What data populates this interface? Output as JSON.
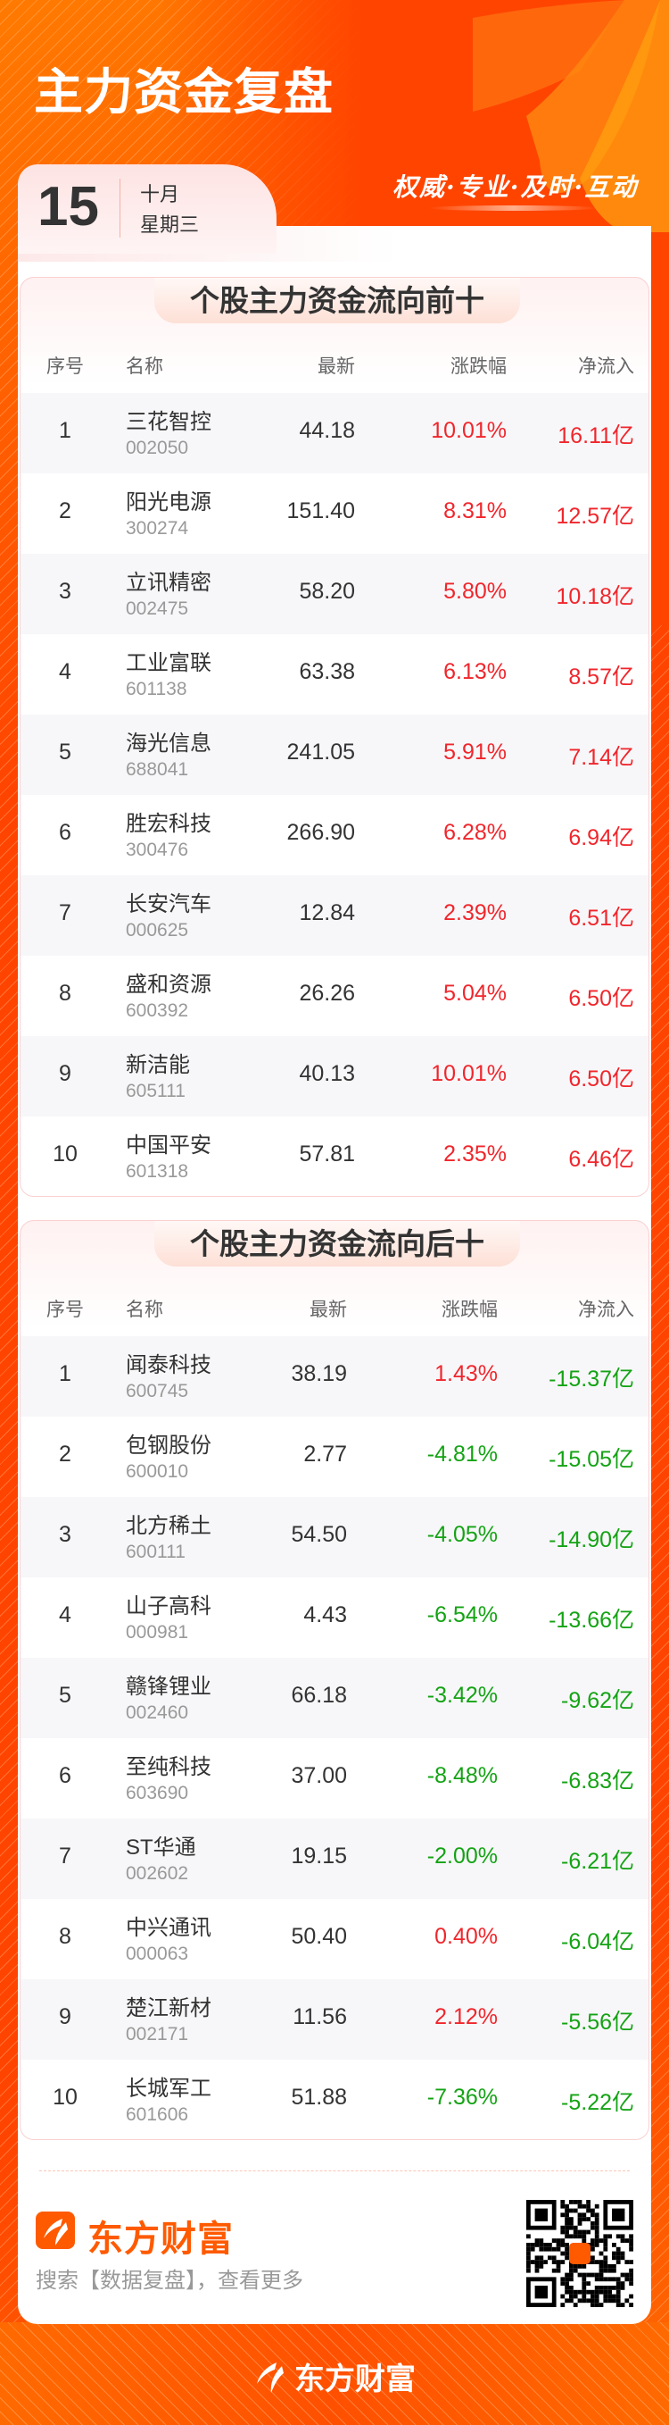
{
  "header": {
    "title": "主力资金复盘",
    "slogan": "权威·专业·及时·互动"
  },
  "date": {
    "day": "15",
    "month": "十月",
    "weekday": "星期三"
  },
  "colors": {
    "background": "#ff4400",
    "up": "#f0262c",
    "down": "#14a314",
    "brand": "#ff5a00"
  },
  "columns": {
    "seq": "序号",
    "name": "名称",
    "price": "最新",
    "change": "涨跌幅",
    "net": "净流入"
  },
  "top_table": {
    "title": "个股主力资金流向前十",
    "rows": [
      {
        "seq": "1",
        "name": "三花智控",
        "code": "002050",
        "price": "44.18",
        "change": "10.01%",
        "net": "16.11亿"
      },
      {
        "seq": "2",
        "name": "阳光电源",
        "code": "300274",
        "price": "151.40",
        "change": "8.31%",
        "net": "12.57亿"
      },
      {
        "seq": "3",
        "name": "立讯精密",
        "code": "002475",
        "price": "58.20",
        "change": "5.80%",
        "net": "10.18亿"
      },
      {
        "seq": "4",
        "name": "工业富联",
        "code": "601138",
        "price": "63.38",
        "change": "6.13%",
        "net": "8.57亿"
      },
      {
        "seq": "5",
        "name": "海光信息",
        "code": "688041",
        "price": "241.05",
        "change": "5.91%",
        "net": "7.14亿"
      },
      {
        "seq": "6",
        "name": "胜宏科技",
        "code": "300476",
        "price": "266.90",
        "change": "6.28%",
        "net": "6.94亿"
      },
      {
        "seq": "7",
        "name": "长安汽车",
        "code": "000625",
        "price": "12.84",
        "change": "2.39%",
        "net": "6.51亿"
      },
      {
        "seq": "8",
        "name": "盛和资源",
        "code": "600392",
        "price": "26.26",
        "change": "5.04%",
        "net": "6.50亿"
      },
      {
        "seq": "9",
        "name": "新洁能",
        "code": "605111",
        "price": "40.13",
        "change": "10.01%",
        "net": "6.50亿"
      },
      {
        "seq": "10",
        "name": "中国平安",
        "code": "601318",
        "price": "57.81",
        "change": "2.35%",
        "net": "6.46亿"
      }
    ]
  },
  "bottom_table": {
    "title": "个股主力资金流向后十",
    "rows": [
      {
        "seq": "1",
        "name": "闻泰科技",
        "code": "600745",
        "price": "38.19",
        "change": "1.43%",
        "net": "-15.37亿"
      },
      {
        "seq": "2",
        "name": "包钢股份",
        "code": "600010",
        "price": "2.77",
        "change": "-4.81%",
        "net": "-15.05亿"
      },
      {
        "seq": "3",
        "name": "北方稀土",
        "code": "600111",
        "price": "54.50",
        "change": "-4.05%",
        "net": "-14.90亿"
      },
      {
        "seq": "4",
        "name": "山子高科",
        "code": "000981",
        "price": "4.43",
        "change": "-6.54%",
        "net": "-13.66亿"
      },
      {
        "seq": "5",
        "name": "赣锋锂业",
        "code": "002460",
        "price": "66.18",
        "change": "-3.42%",
        "net": "-9.62亿"
      },
      {
        "seq": "6",
        "name": "至纯科技",
        "code": "603690",
        "price": "37.00",
        "change": "-8.48%",
        "net": "-6.83亿"
      },
      {
        "seq": "7",
        "name": "ST华通",
        "code": "002602",
        "price": "19.15",
        "change": "-2.00%",
        "net": "-6.21亿"
      },
      {
        "seq": "8",
        "name": "中兴通讯",
        "code": "000063",
        "price": "50.40",
        "change": "0.40%",
        "net": "-6.04亿"
      },
      {
        "seq": "9",
        "name": "楚江新材",
        "code": "002171",
        "price": "11.56",
        "change": "2.12%",
        "net": "-5.56亿"
      },
      {
        "seq": "10",
        "name": "长城军工",
        "code": "601606",
        "price": "51.88",
        "change": "-7.36%",
        "net": "-5.22亿"
      }
    ]
  },
  "footer": {
    "brand": "东方财富",
    "search_hint": "搜索【数据复盘】，查看更多",
    "bottom_brand": "东方财富",
    "qr_icon": "qr-code"
  }
}
